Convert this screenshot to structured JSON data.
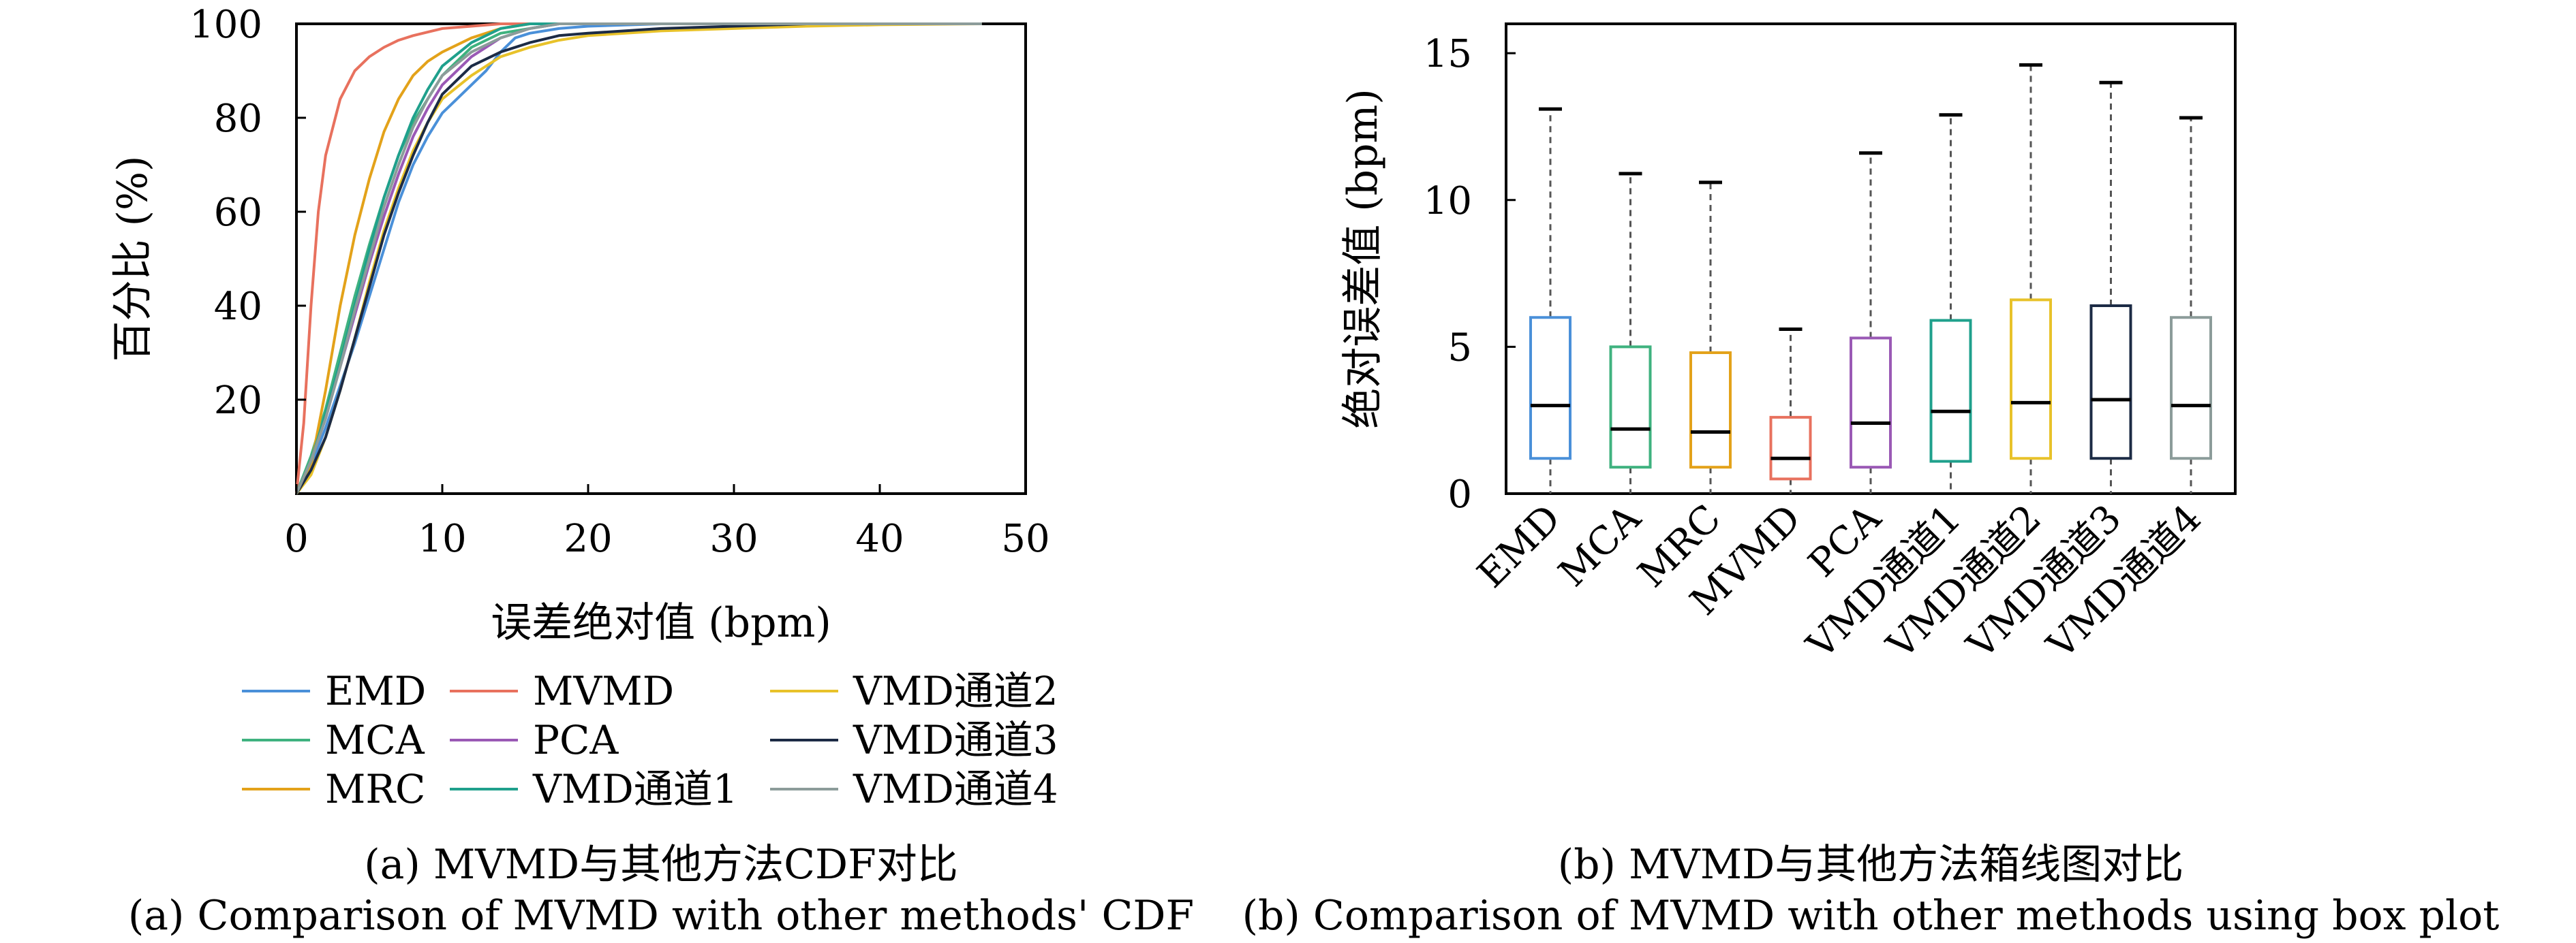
{
  "chart_data": [
    {
      "type": "line",
      "kind": "cdf",
      "xlabel": "误差绝对值 (bpm)",
      "ylabel": "百分比 (%)",
      "xlim": [
        0,
        50
      ],
      "ylim": [
        0,
        100
      ],
      "x_ticks": [
        0,
        10,
        20,
        30,
        40,
        50
      ],
      "y_ticks": [
        20,
        40,
        60,
        80,
        100
      ],
      "grid": false,
      "legend_position": "bottom",
      "caption_cn": "(a) MVMD与其他方法CDF对比",
      "caption_en": "(a) Comparison of MVMD with other methods' CDF",
      "series": [
        {
          "name": "EMD",
          "color": "#4a90d9",
          "x": [
            0,
            1,
            2,
            3,
            4,
            5,
            6,
            7,
            8,
            9,
            10,
            11,
            12,
            13,
            14,
            15,
            16,
            18,
            20,
            25,
            30,
            47
          ],
          "y": [
            0,
            6,
            14,
            23,
            32,
            42,
            52,
            62,
            70,
            76,
            81,
            84,
            87,
            90,
            94,
            97,
            98,
            99,
            99.5,
            100,
            100,
            100
          ]
        },
        {
          "name": "MVMD",
          "color": "#e8715e",
          "x": [
            0,
            0.5,
            1,
            1.5,
            2,
            3,
            4,
            5,
            6,
            7,
            8,
            10,
            12,
            14,
            16,
            20,
            30,
            47
          ],
          "y": [
            0,
            15,
            40,
            60,
            72,
            84,
            90,
            93,
            95,
            96.5,
            97.5,
            99,
            99.5,
            100,
            100,
            100,
            100,
            100
          ]
        },
        {
          "name": "MCA",
          "color": "#3fb27f",
          "x": [
            0,
            1,
            2,
            3,
            4,
            5,
            6,
            7,
            8,
            9,
            10,
            12,
            14,
            16,
            18,
            20,
            30,
            47
          ],
          "y": [
            0,
            8,
            18,
            30,
            42,
            53,
            63,
            72,
            79,
            84,
            89,
            95,
            98,
            99,
            100,
            100,
            100,
            100
          ]
        },
        {
          "name": "PCA",
          "color": "#9a59b5",
          "x": [
            0,
            1,
            2,
            3,
            4,
            5,
            6,
            7,
            8,
            9,
            10,
            12,
            14,
            16,
            18,
            20,
            30,
            47
          ],
          "y": [
            0,
            7,
            16,
            27,
            38,
            49,
            59,
            68,
            76,
            82,
            87,
            93,
            97,
            99,
            100,
            100,
            100,
            100
          ]
        },
        {
          "name": "MRC",
          "color": "#e3a21a",
          "x": [
            0,
            1,
            2,
            3,
            4,
            5,
            6,
            7,
            8,
            9,
            10,
            12,
            14,
            16,
            18,
            20,
            30,
            47
          ],
          "y": [
            0,
            6,
            22,
            40,
            55,
            67,
            77,
            84,
            89,
            92,
            94,
            97,
            99,
            100,
            100,
            100,
            100,
            100
          ]
        },
        {
          "name": "VMD通道1",
          "color": "#1fa08c",
          "x": [
            0,
            1,
            2,
            3,
            4,
            5,
            6,
            7,
            8,
            9,
            10,
            12,
            14,
            16,
            18,
            20,
            30,
            47
          ],
          "y": [
            0,
            7,
            17,
            28,
            40,
            52,
            63,
            72,
            80,
            86,
            91,
            96,
            99,
            100,
            100,
            100,
            100,
            100
          ]
        },
        {
          "name": "VMD通道2",
          "color": "#e8c22a",
          "x": [
            0,
            1,
            2,
            3,
            4,
            5,
            6,
            7,
            8,
            9,
            10,
            12,
            14,
            16,
            18,
            20,
            25,
            30,
            35,
            40,
            47
          ],
          "y": [
            0,
            4,
            12,
            22,
            33,
            45,
            56,
            65,
            73,
            79,
            84,
            89,
            93,
            95,
            96.5,
            97.5,
            98.5,
            99,
            99.5,
            99.8,
            100
          ]
        },
        {
          "name": "VMD通道3",
          "color": "#1c2b45",
          "x": [
            0,
            1,
            2,
            3,
            4,
            5,
            6,
            7,
            8,
            9,
            10,
            12,
            14,
            16,
            18,
            20,
            25,
            30,
            35,
            40,
            47
          ],
          "y": [
            0,
            5,
            12,
            22,
            33,
            44,
            55,
            64,
            72,
            79,
            85,
            91,
            94,
            96,
            97.5,
            98,
            99,
            99.5,
            100,
            100,
            100
          ]
        },
        {
          "name": "VMD通道4",
          "color": "#8c9c9a",
          "x": [
            0,
            1,
            2,
            3,
            4,
            5,
            6,
            7,
            8,
            9,
            10,
            12,
            14,
            16,
            18,
            20,
            30,
            47
          ],
          "y": [
            0,
            7,
            16,
            27,
            39,
            50,
            61,
            70,
            78,
            84,
            89,
            94,
            97,
            99,
            100,
            100,
            100,
            100
          ]
        }
      ]
    },
    {
      "type": "box",
      "ylabel": "绝对误差值 (bpm)",
      "ylim": [
        0,
        16
      ],
      "y_ticks": [
        0,
        5,
        10,
        15
      ],
      "categories": [
        "EMD",
        "MCA",
        "MRC",
        "MVMD",
        "PCA",
        "VMD通道1",
        "VMD通道2",
        "VMD通道3",
        "VMD通道4"
      ],
      "grid": false,
      "caption_cn": "(b) MVMD与其他方法箱线图对比",
      "caption_en": "(b) Comparison of MVMD with other methods using box plot",
      "boxes": [
        {
          "name": "EMD",
          "color": "#4a90d9",
          "min": 0,
          "q1": 1.2,
          "median": 3.0,
          "q3": 6.0,
          "max": 13.1
        },
        {
          "name": "MCA",
          "color": "#3fb27f",
          "min": 0,
          "q1": 0.9,
          "median": 2.2,
          "q3": 5.0,
          "max": 10.9
        },
        {
          "name": "MRC",
          "color": "#e3a21a",
          "min": 0,
          "q1": 0.9,
          "median": 2.1,
          "q3": 4.8,
          "max": 10.6
        },
        {
          "name": "MVMD",
          "color": "#e8715e",
          "min": 0,
          "q1": 0.5,
          "median": 1.2,
          "q3": 2.6,
          "max": 5.6
        },
        {
          "name": "PCA",
          "color": "#9a59b5",
          "min": 0,
          "q1": 0.9,
          "median": 2.4,
          "q3": 5.3,
          "max": 11.6
        },
        {
          "name": "VMD通道1",
          "color": "#1fa08c",
          "min": 0,
          "q1": 1.1,
          "median": 2.8,
          "q3": 5.9,
          "max": 12.9
        },
        {
          "name": "VMD通道2",
          "color": "#e8c22a",
          "min": 0,
          "q1": 1.2,
          "median": 3.1,
          "q3": 6.6,
          "max": 14.6
        },
        {
          "name": "VMD通道3",
          "color": "#1c2b45",
          "min": 0,
          "q1": 1.2,
          "median": 3.2,
          "q3": 6.4,
          "max": 14.0
        },
        {
          "name": "VMD通道4",
          "color": "#8c9c9a",
          "min": 0,
          "q1": 1.2,
          "median": 3.0,
          "q3": 6.0,
          "max": 12.8
        }
      ]
    }
  ]
}
